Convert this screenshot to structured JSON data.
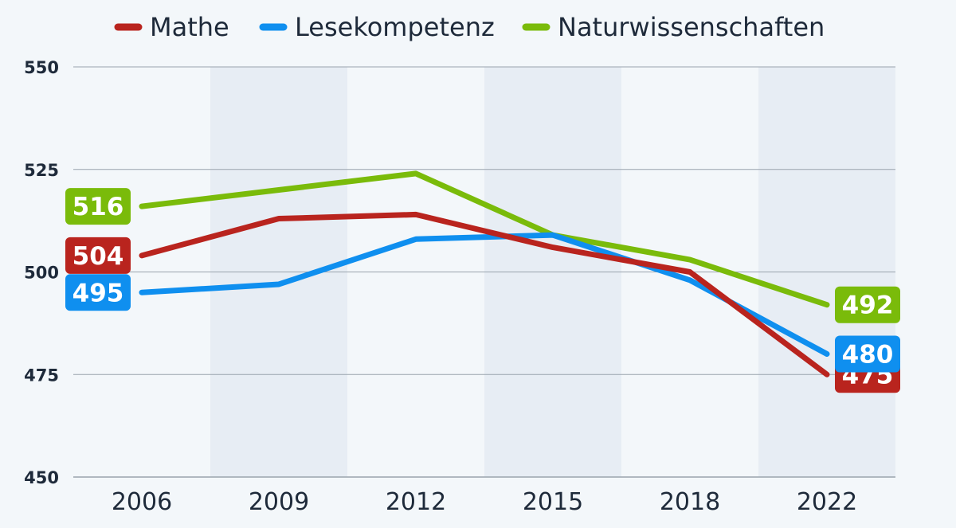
{
  "chart_data": {
    "type": "line",
    "title": "",
    "xlabel": "",
    "ylabel": "",
    "categories": [
      "2006",
      "2009",
      "2012",
      "2015",
      "2018",
      "2022"
    ],
    "ylim": [
      450,
      550
    ],
    "yticks": [
      450,
      475,
      500,
      525,
      550
    ],
    "grid": true,
    "legend_position": "top",
    "series": [
      {
        "name": "Mathe",
        "color": "#b9241e",
        "values": [
          504,
          513,
          514,
          506,
          500,
          475
        ],
        "start_label": "504",
        "end_label": "475"
      },
      {
        "name": "Lesekompetenz",
        "color": "#0f8fef",
        "values": [
          495,
          497,
          508,
          509,
          498,
          480
        ],
        "start_label": "495",
        "end_label": "480"
      },
      {
        "name": "Naturwissenschaften",
        "color": "#7abb0a",
        "values": [
          516,
          520,
          524,
          509,
          503,
          492
        ],
        "start_label": "516",
        "end_label": "492"
      }
    ]
  },
  "colors": {
    "background": "#f3f7fa",
    "band": "#e7edf4",
    "gridline": "#9aa3ad",
    "text": "#1e2a3a"
  }
}
